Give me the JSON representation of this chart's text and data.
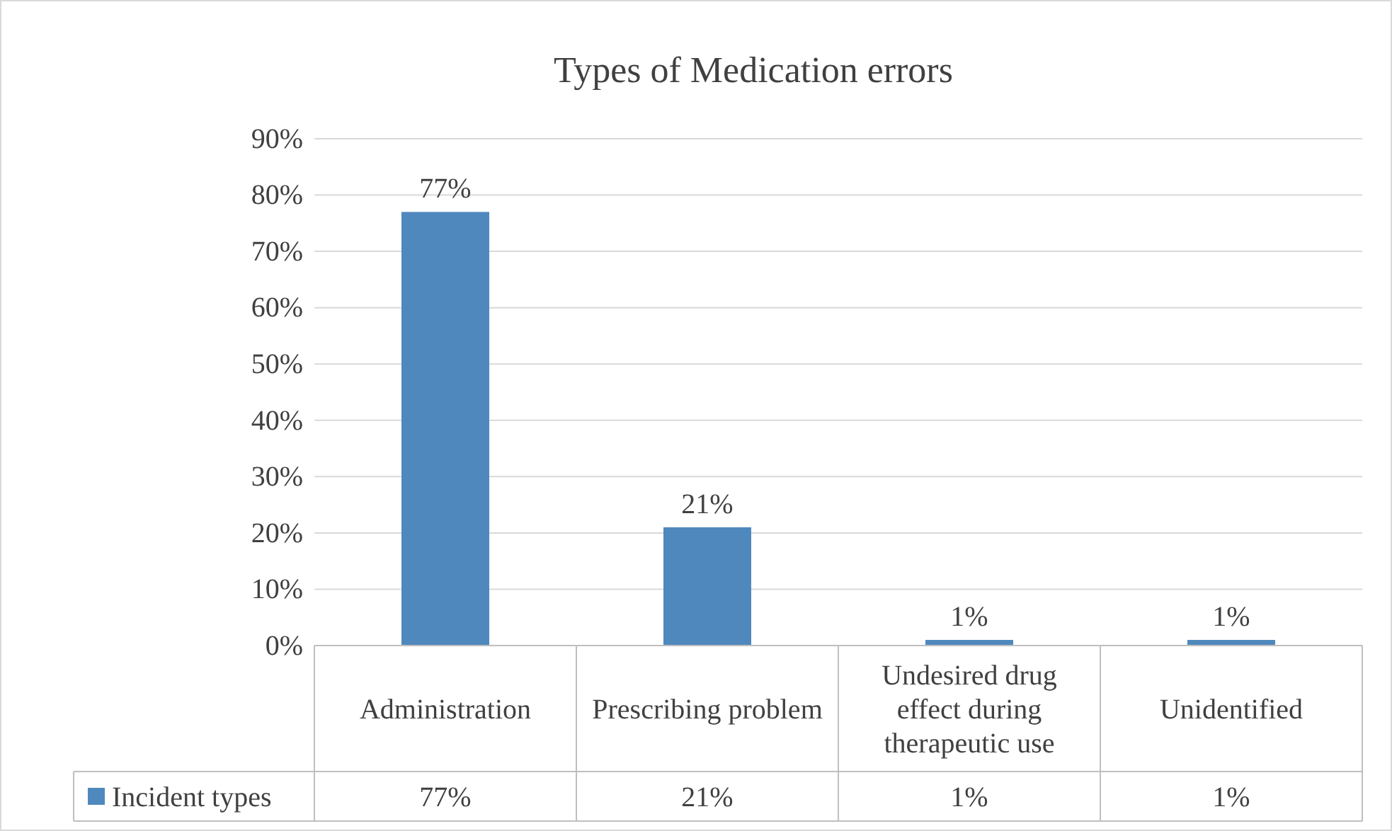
{
  "chart_data": {
    "type": "bar",
    "title": "Types of Medication errors",
    "categories": [
      "Administration",
      "Prescribing problem",
      "Undesired drug effect during therapeutic use",
      "Unidentified"
    ],
    "series": [
      {
        "name": "Incident types",
        "color": "#4f88bd",
        "values": [
          77,
          21,
          1,
          1
        ],
        "value_labels": [
          "77%",
          "21%",
          "1%",
          "1%"
        ]
      }
    ],
    "ylim": [
      0,
      90
    ],
    "yticks": [
      {
        "value": 0,
        "label": "0%"
      },
      {
        "value": 10,
        "label": "10%"
      },
      {
        "value": 20,
        "label": "20%"
      },
      {
        "value": 30,
        "label": "30%"
      },
      {
        "value": 40,
        "label": "40%"
      },
      {
        "value": 50,
        "label": "50%"
      },
      {
        "value": 60,
        "label": "60%"
      },
      {
        "value": 70,
        "label": "70%"
      },
      {
        "value": 80,
        "label": "80%"
      },
      {
        "value": 90,
        "label": "90%"
      }
    ],
    "grid": "y",
    "legend": "bottom"
  }
}
